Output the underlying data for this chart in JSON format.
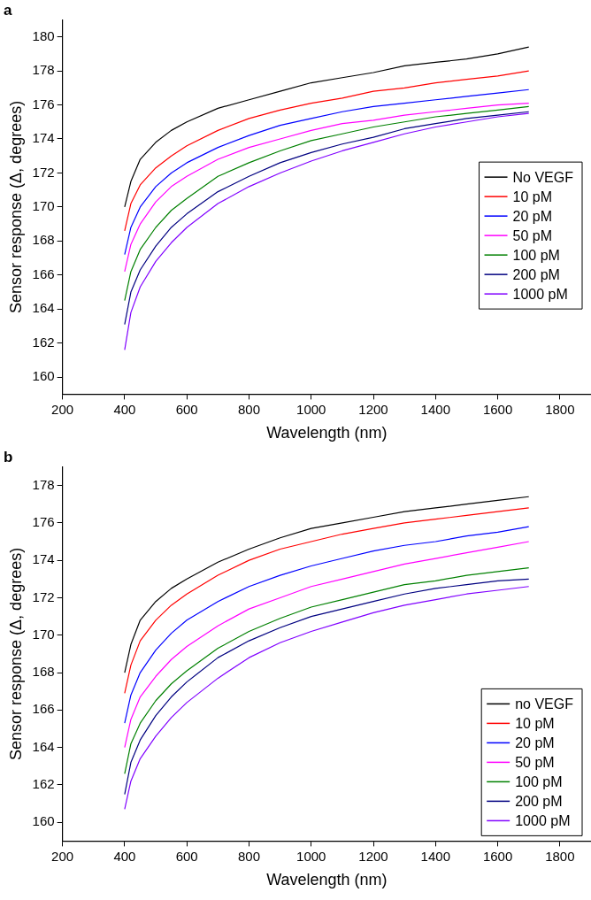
{
  "chart_data": [
    {
      "type": "line",
      "title": "a",
      "xlabel": "Wavelength (nm)",
      "ylabel": "Sensor response (Δ, degrees)",
      "legend": "right",
      "marker": "none",
      "line_style": "solid",
      "x": [
        400,
        420,
        450,
        500,
        550,
        600,
        700,
        800,
        900,
        1000,
        1100,
        1200,
        1300,
        1400,
        1500,
        1600,
        1700
      ],
      "xlim": [
        200,
        1900
      ],
      "xticks": [
        200,
        400,
        600,
        800,
        1000,
        1200,
        1400,
        1600,
        1800
      ],
      "ylim": [
        159,
        181
      ],
      "yticks": [
        160,
        162,
        164,
        166,
        168,
        170,
        172,
        174,
        176,
        178,
        180
      ],
      "series": [
        {
          "name": "No VEGF",
          "color": "#000000",
          "values": [
            170.0,
            171.5,
            172.8,
            173.8,
            174.5,
            175.0,
            175.8,
            176.3,
            176.8,
            177.3,
            177.6,
            177.9,
            178.3,
            178.5,
            178.7,
            179.0,
            179.4
          ]
        },
        {
          "name": "10 pM",
          "color": "#ff0000",
          "values": [
            168.6,
            170.2,
            171.3,
            172.3,
            173.0,
            173.6,
            174.5,
            175.2,
            175.7,
            176.1,
            176.4,
            176.8,
            177.0,
            177.3,
            177.5,
            177.7,
            178.0
          ]
        },
        {
          "name": "20 pM",
          "color": "#0000ff",
          "values": [
            167.2,
            168.8,
            170.0,
            171.2,
            172.0,
            172.6,
            173.5,
            174.2,
            174.8,
            175.2,
            175.6,
            175.9,
            176.1,
            176.3,
            176.5,
            176.7,
            176.9
          ]
        },
        {
          "name": "50 pM",
          "color": "#ff00ff",
          "values": [
            166.2,
            167.8,
            169.0,
            170.3,
            171.2,
            171.8,
            172.8,
            173.5,
            174.0,
            174.5,
            174.9,
            175.1,
            175.4,
            175.6,
            175.8,
            176.0,
            176.1
          ]
        },
        {
          "name": "100 pM",
          "color": "#008000",
          "values": [
            164.5,
            166.2,
            167.5,
            168.8,
            169.8,
            170.5,
            171.8,
            172.6,
            173.3,
            173.9,
            174.3,
            174.7,
            175.0,
            175.3,
            175.5,
            175.7,
            175.9
          ]
        },
        {
          "name": "200 pM",
          "color": "#000080",
          "values": [
            163.1,
            165.0,
            166.3,
            167.7,
            168.8,
            169.6,
            170.9,
            171.8,
            172.6,
            173.2,
            173.7,
            174.1,
            174.6,
            174.9,
            175.2,
            175.4,
            175.6
          ]
        },
        {
          "name": "1000 pM",
          "color": "#8000ff",
          "values": [
            161.6,
            163.8,
            165.3,
            166.8,
            167.9,
            168.8,
            170.2,
            171.2,
            172.0,
            172.7,
            173.3,
            173.8,
            174.3,
            174.7,
            175.0,
            175.3,
            175.5
          ]
        }
      ]
    },
    {
      "type": "line",
      "title": "b",
      "xlabel": "Wavelength (nm)",
      "ylabel": "Sensor response (Δ, degrees)",
      "legend": "bottom right",
      "marker": "none",
      "line_style": "solid",
      "x": [
        400,
        420,
        450,
        500,
        550,
        600,
        700,
        800,
        900,
        1000,
        1100,
        1200,
        1300,
        1400,
        1500,
        1600,
        1700
      ],
      "xlim": [
        200,
        1900
      ],
      "xticks": [
        200,
        400,
        600,
        800,
        1000,
        1200,
        1400,
        1600,
        1800
      ],
      "ylim": [
        159,
        179
      ],
      "yticks": [
        160,
        162,
        164,
        166,
        168,
        170,
        172,
        174,
        176,
        178
      ],
      "series": [
        {
          "name": "no VEGF",
          "color": "#000000",
          "values": [
            168.0,
            169.5,
            170.8,
            171.8,
            172.5,
            173.0,
            173.9,
            174.6,
            175.2,
            175.7,
            176.0,
            176.3,
            176.6,
            176.8,
            177.0,
            177.2,
            177.4
          ]
        },
        {
          "name": "10 pM",
          "color": "#ff0000",
          "values": [
            166.9,
            168.4,
            169.7,
            170.8,
            171.6,
            172.2,
            173.2,
            174.0,
            174.6,
            175.0,
            175.4,
            175.7,
            176.0,
            176.2,
            176.4,
            176.6,
            176.8
          ]
        },
        {
          "name": "20 pM",
          "color": "#0000ff",
          "values": [
            165.3,
            166.8,
            168.0,
            169.2,
            170.1,
            170.8,
            171.8,
            172.6,
            173.2,
            173.7,
            174.1,
            174.5,
            174.8,
            175.0,
            175.3,
            175.5,
            175.8
          ]
        },
        {
          "name": "50 pM",
          "color": "#ff00ff",
          "values": [
            164.0,
            165.5,
            166.7,
            167.8,
            168.7,
            169.4,
            170.5,
            171.4,
            172.0,
            172.6,
            173.0,
            173.4,
            173.8,
            174.1,
            174.4,
            174.7,
            175.0
          ]
        },
        {
          "name": "100 pM",
          "color": "#008000",
          "values": [
            162.6,
            164.2,
            165.3,
            166.5,
            167.4,
            168.1,
            169.3,
            170.2,
            170.9,
            171.5,
            171.9,
            172.3,
            172.7,
            172.9,
            173.2,
            173.4,
            173.6
          ]
        },
        {
          "name": "200 pM",
          "color": "#000080",
          "values": [
            161.5,
            163.2,
            164.4,
            165.7,
            166.7,
            167.5,
            168.8,
            169.7,
            170.4,
            171.0,
            171.4,
            171.8,
            172.2,
            172.5,
            172.7,
            172.9,
            173.0
          ]
        },
        {
          "name": "1000 pM",
          "color": "#8000ff",
          "values": [
            160.7,
            162.2,
            163.4,
            164.6,
            165.6,
            166.4,
            167.7,
            168.8,
            169.6,
            170.2,
            170.7,
            171.2,
            171.6,
            171.9,
            172.2,
            172.4,
            172.6
          ]
        }
      ]
    }
  ]
}
